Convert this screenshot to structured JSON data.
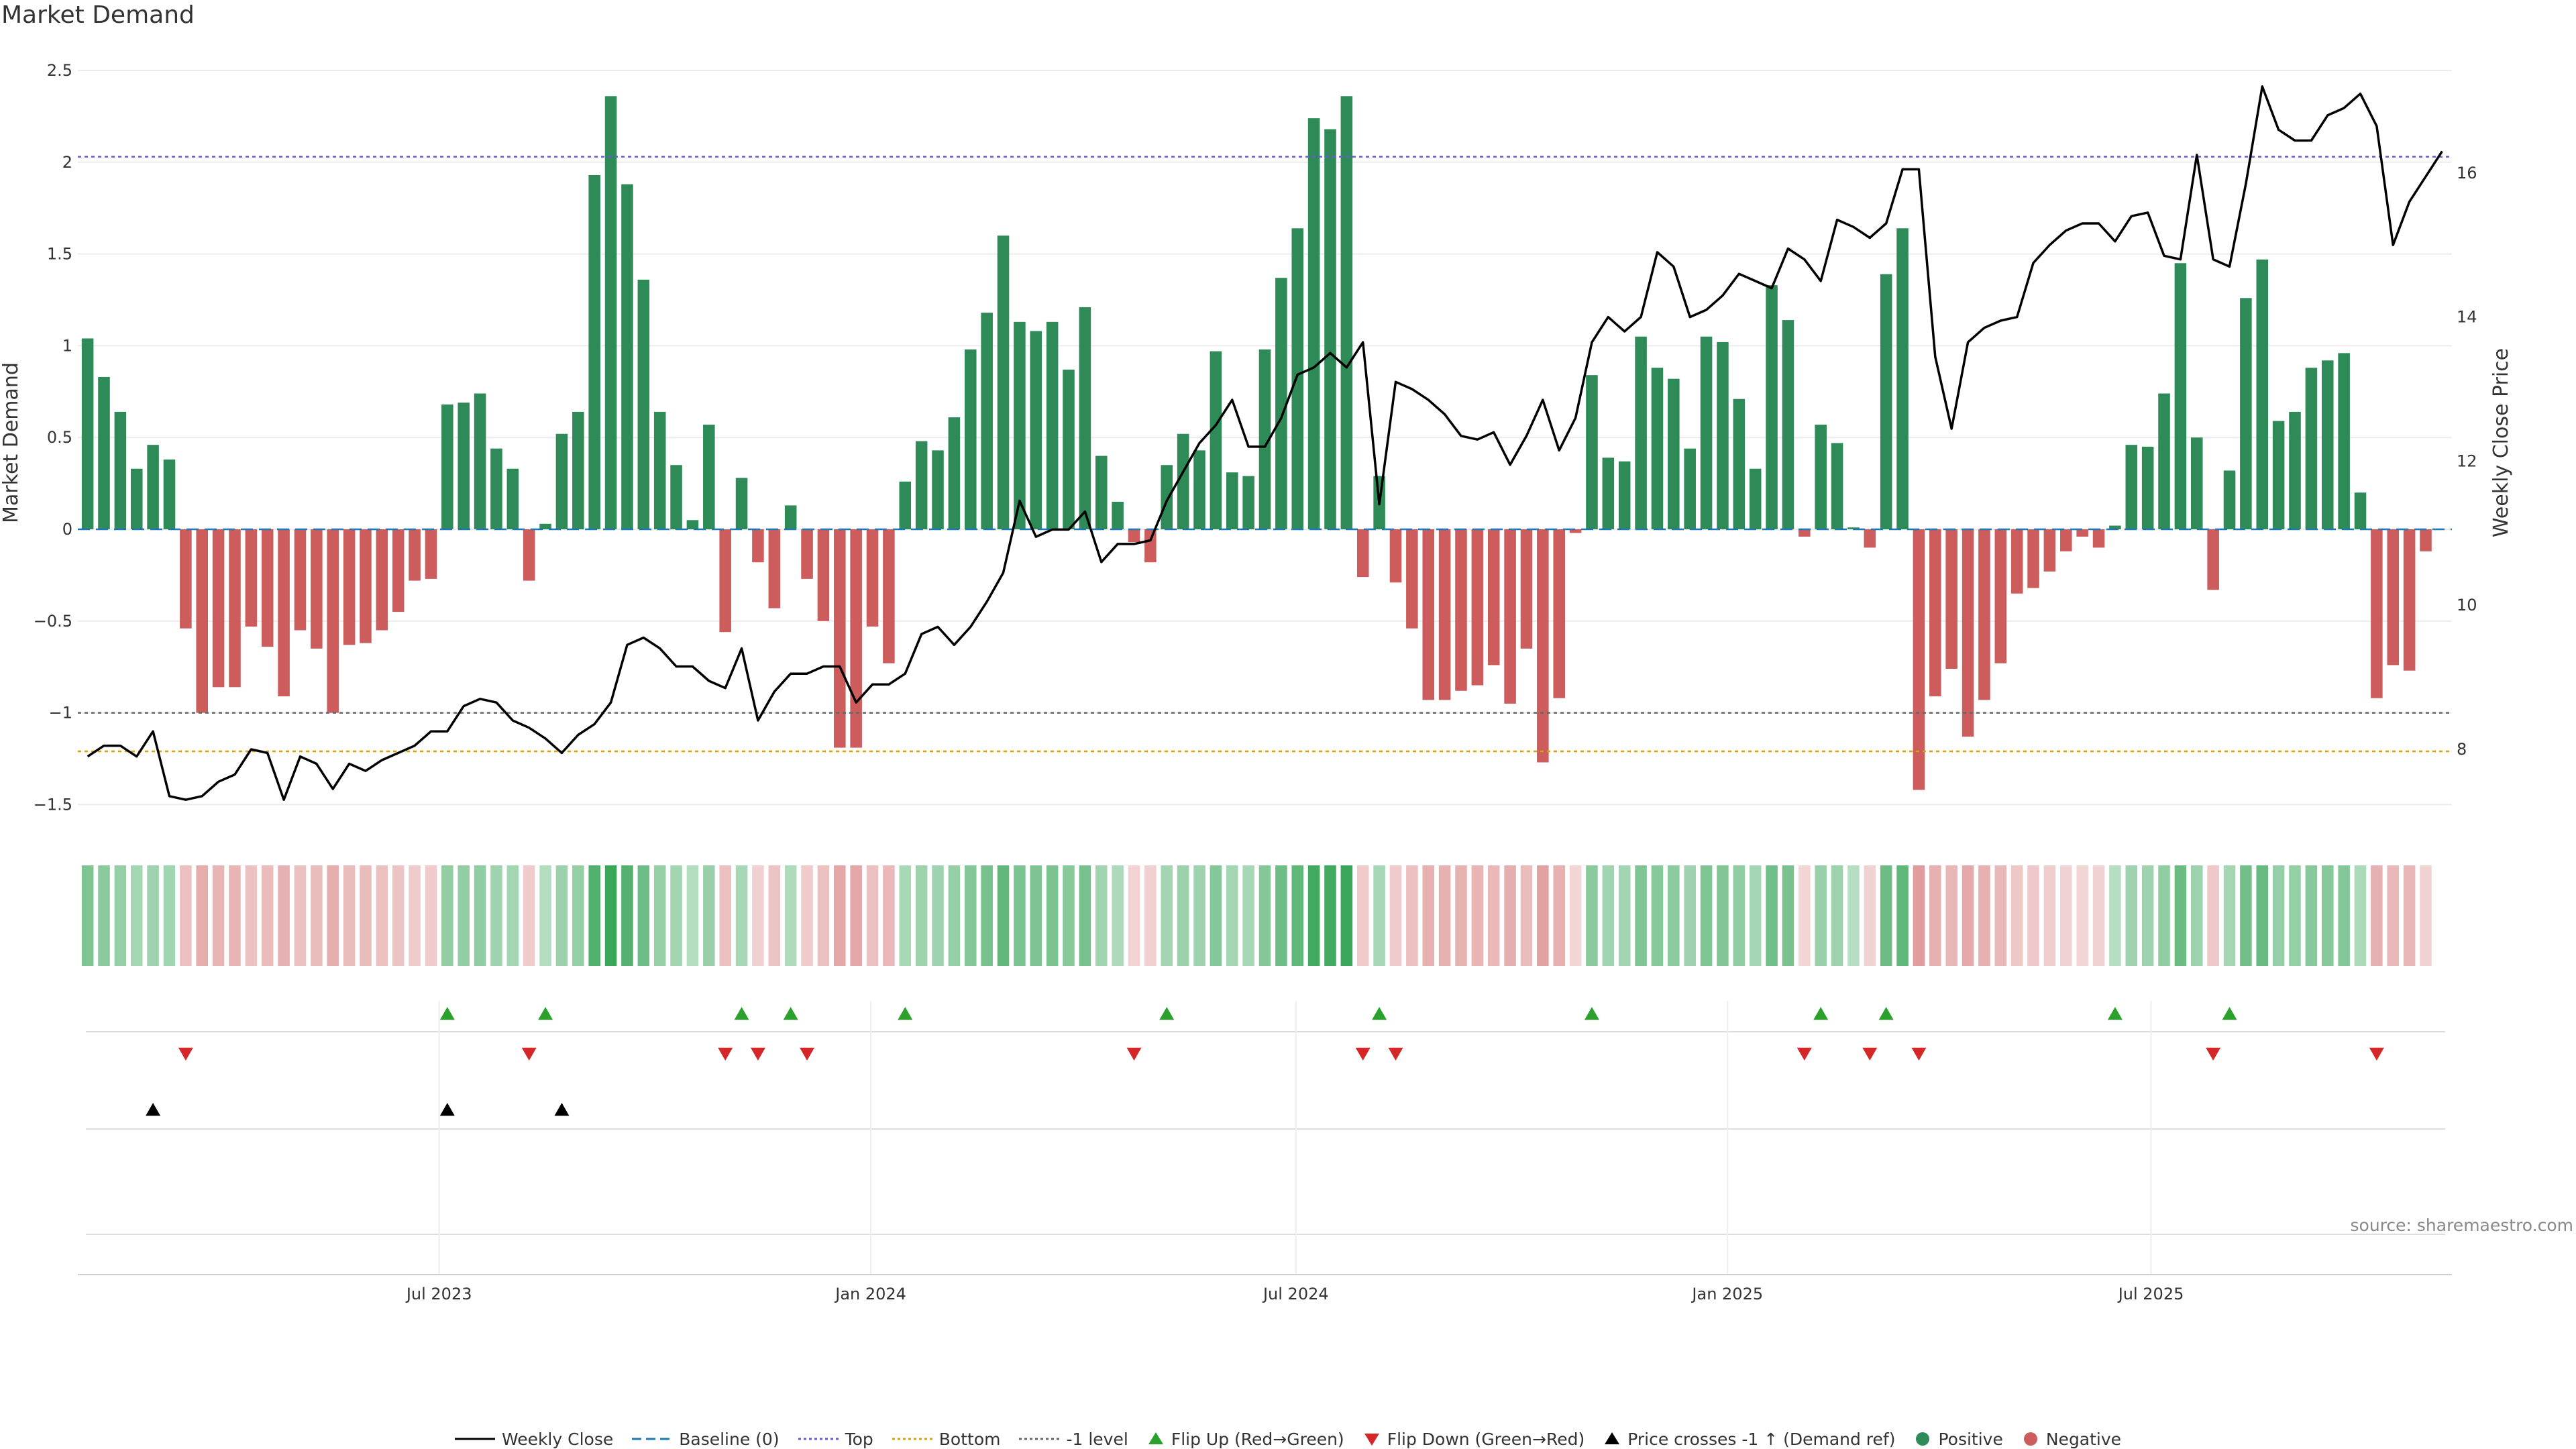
{
  "title": "Market Demand",
  "source": "source: sharemaestro.com",
  "colors": {
    "positive": "#2e8b57",
    "negative": "#cd5c5c",
    "price": "#000000",
    "baseline": "#1f77b4",
    "top": "#6a5acd",
    "bottom": "#d4a017",
    "neg1": "#666666",
    "flip_up": "#2ca02c",
    "flip_down": "#d62728",
    "cross": "#000000"
  },
  "legend": [
    {
      "label": "Weekly Close",
      "kind": "line",
      "icon": "solid-line-icon",
      "color": "#000000"
    },
    {
      "label": "Baseline (0)",
      "kind": "dash",
      "icon": "dashed-line-icon",
      "color": "#1f77b4"
    },
    {
      "label": "Top",
      "kind": "dot",
      "icon": "dotted-line-icon",
      "color": "#6a5acd"
    },
    {
      "label": "Bottom",
      "kind": "dot",
      "icon": "dotted-line-icon",
      "color": "#d4a017"
    },
    {
      "label": "-1 level",
      "kind": "dot",
      "icon": "dotted-line-icon",
      "color": "#666666"
    },
    {
      "label": "Flip Up (Red→Green)",
      "kind": "tri-up",
      "icon": "triangle-up-icon",
      "color": "#2ca02c"
    },
    {
      "label": "Flip Down (Green→Red)",
      "kind": "tri-down",
      "icon": "triangle-down-icon",
      "color": "#d62728"
    },
    {
      "label": "Price crosses -1 ↑ (Demand ref)",
      "kind": "tri-up",
      "icon": "triangle-up-icon",
      "color": "#000000"
    },
    {
      "label": "Positive",
      "kind": "circle",
      "icon": "circle-icon",
      "color": "#2e8b57"
    },
    {
      "label": "Negative",
      "kind": "circle",
      "icon": "circle-icon",
      "color": "#cd5c5c"
    }
  ],
  "chart_data": {
    "type": "bar",
    "title": "Market Demand",
    "x_start_week": "2023-02-25",
    "week_step_days": 7,
    "xlim_weeks": [
      -0.6,
      144.6
    ],
    "x_ticks": [
      {
        "label": "Jul 2023",
        "week": 21.5
      },
      {
        "label": "Jan 2024",
        "week": 47.9
      },
      {
        "label": "Jul 2024",
        "week": 73.9
      },
      {
        "label": "Jan 2025",
        "week": 100.3
      },
      {
        "label": "Jul 2025",
        "week": 126.2
      }
    ],
    "ylabel_left": "Market Demand",
    "ylabel_right": "Weekly Close Price",
    "ylim_left": [
      -1.64,
      2.5
    ],
    "y_ticks_left": [
      2.5,
      2,
      1.5,
      1,
      0.5,
      0,
      -0.5,
      -1,
      -1.5
    ],
    "y_tick_labels_left": [
      "2.5",
      "2",
      "1.5",
      "1",
      "0.5",
      "0",
      "−0.5",
      "−1",
      "−1.5"
    ],
    "ylim_right": [
      7.4,
      17.4
    ],
    "y_ticks_right": [
      8,
      10,
      12,
      14,
      16
    ],
    "reference_lines": {
      "baseline": 0,
      "top": 2.03,
      "bottom": -1.21,
      "minus_one": -1.0
    },
    "series": [
      {
        "name": "Market Demand",
        "values": [
          1.04,
          0.83,
          0.64,
          0.33,
          0.46,
          0.38,
          -0.54,
          -1.0,
          -0.86,
          -0.86,
          -0.53,
          -0.64,
          -0.91,
          -0.55,
          -0.65,
          -1.0,
          -0.63,
          -0.62,
          -0.55,
          -0.45,
          -0.28,
          -0.27,
          0.68,
          0.69,
          0.74,
          0.44,
          0.33,
          -0.28,
          0.03,
          0.52,
          0.64,
          1.93,
          2.36,
          1.88,
          1.36,
          0.64,
          0.35,
          0.05,
          0.57,
          -0.56,
          0.28,
          -0.18,
          -0.43,
          0.13,
          -0.27,
          -0.5,
          -1.19,
          -1.19,
          -0.53,
          -0.73,
          0.26,
          0.48,
          0.43,
          0.61,
          0.98,
          1.18,
          1.6,
          1.13,
          1.08,
          1.13,
          0.87,
          1.21,
          0.4,
          0.15,
          -0.07,
          -0.18,
          0.35,
          0.52,
          0.43,
          0.97,
          0.31,
          0.29,
          0.98,
          1.37,
          1.64,
          2.24,
          2.18,
          2.36,
          -0.26,
          0.29,
          -0.29,
          -0.54,
          -0.93,
          -0.93,
          -0.88,
          -0.85,
          -0.74,
          -0.95,
          -0.65,
          -1.27,
          -0.92,
          -0.02,
          0.84,
          0.39,
          0.37,
          1.05,
          0.88,
          0.82,
          0.44,
          1.05,
          1.02,
          0.71,
          0.33,
          1.33,
          1.14,
          -0.04,
          0.57,
          0.47,
          0.01,
          -0.1,
          1.39,
          1.64,
          -1.42,
          -0.91,
          -0.76,
          -1.13,
          -0.93,
          -0.73,
          -0.35,
          -0.32,
          -0.23,
          -0.12,
          -0.04,
          -0.1,
          0.02,
          0.46,
          0.45,
          0.74,
          1.45,
          0.5,
          -0.33,
          0.32,
          1.26,
          1.47,
          0.59,
          0.64,
          0.88,
          0.92,
          0.96,
          0.2,
          -0.92,
          -0.74,
          -0.77,
          -0.12
        ]
      },
      {
        "name": "Weekly Close",
        "values": [
          7.9,
          8.05,
          8.05,
          7.9,
          8.25,
          7.35,
          7.3,
          7.35,
          7.55,
          7.65,
          8.0,
          7.95,
          7.3,
          7.9,
          7.8,
          7.45,
          7.8,
          7.7,
          7.85,
          7.95,
          8.05,
          8.25,
          8.25,
          8.6,
          8.7,
          8.65,
          8.4,
          8.3,
          8.15,
          7.95,
          8.2,
          8.35,
          8.65,
          9.45,
          9.55,
          9.4,
          9.15,
          9.15,
          8.95,
          8.85,
          9.4,
          8.4,
          8.8,
          9.05,
          9.05,
          9.15,
          9.15,
          8.65,
          8.9,
          8.9,
          9.05,
          9.6,
          9.7,
          9.45,
          9.7,
          10.05,
          10.45,
          11.45,
          10.95,
          11.05,
          11.05,
          11.3,
          10.6,
          10.85,
          10.85,
          10.9,
          11.45,
          11.85,
          12.25,
          12.5,
          12.85,
          12.2,
          12.2,
          12.6,
          13.2,
          13.3,
          13.5,
          13.3,
          13.65,
          11.4,
          13.1,
          13.0,
          12.85,
          12.65,
          12.35,
          12.3,
          12.4,
          11.95,
          12.35,
          12.85,
          12.15,
          12.6,
          13.65,
          14.0,
          13.8,
          14.0,
          14.9,
          14.7,
          14.0,
          14.1,
          14.3,
          14.6,
          14.5,
          14.4,
          14.95,
          14.8,
          14.5,
          15.35,
          15.25,
          15.1,
          15.3,
          16.05,
          16.05,
          13.45,
          12.45,
          13.65,
          13.85,
          13.95,
          14.0,
          14.75,
          15.0,
          15.2,
          15.3,
          15.3,
          15.05,
          15.4,
          15.45,
          14.85,
          14.8,
          16.25,
          14.8,
          14.7,
          15.85,
          17.2,
          16.6,
          16.45,
          16.45,
          16.8,
          16.9,
          17.1,
          16.65,
          15.0,
          15.6,
          15.95,
          16.3
        ]
      }
    ],
    "flip_up_weeks": [
      22,
      28,
      40,
      43,
      50,
      66,
      79,
      92,
      106,
      110,
      124,
      131
    ],
    "flip_down_weeks": [
      6,
      27,
      39,
      41,
      44,
      64,
      78,
      80,
      105,
      109,
      112,
      130,
      140
    ],
    "price_cross_weeks": [
      4,
      22,
      29
    ]
  }
}
